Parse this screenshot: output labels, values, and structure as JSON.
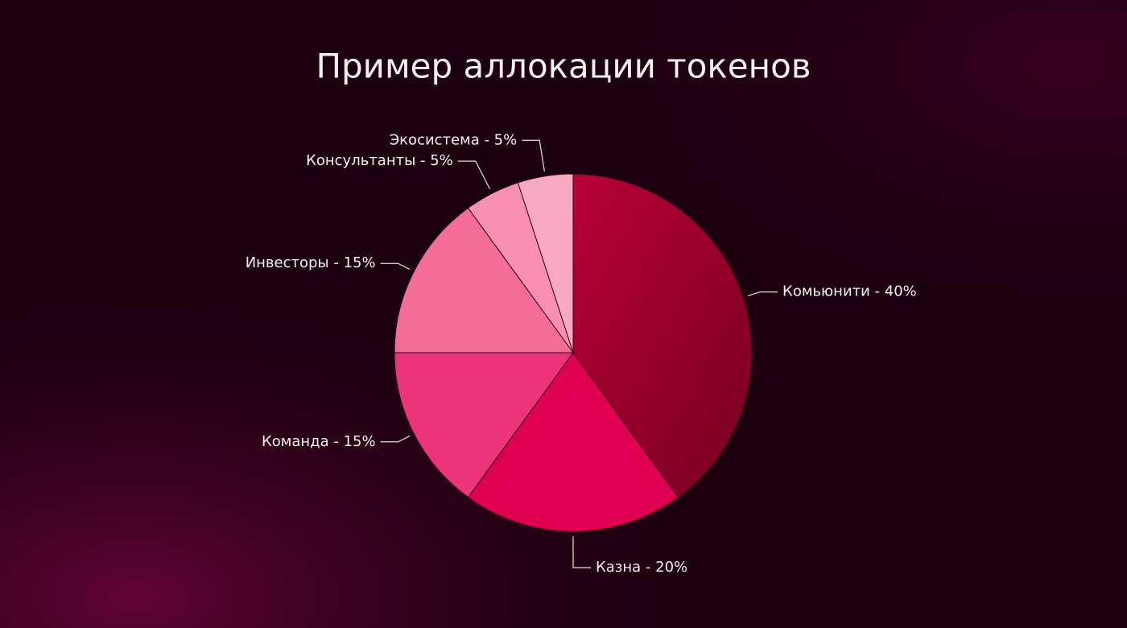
{
  "chart_data": {
    "type": "pie",
    "title": "Пример аллокации токенов",
    "values": [
      40,
      20,
      15,
      15,
      5,
      5
    ],
    "value_labels": [
      "Комьюнити - 40%",
      "Казна - 20%",
      "Команда - 15%",
      "Инвесторы - 15%",
      "Консультанты - 5%",
      "Экосистема - 5%"
    ],
    "colors": [
      "#a5002f",
      "#df0052",
      "#ec347a",
      "#f46c98",
      "#f890b3",
      "#f7a9c4"
    ]
  }
}
